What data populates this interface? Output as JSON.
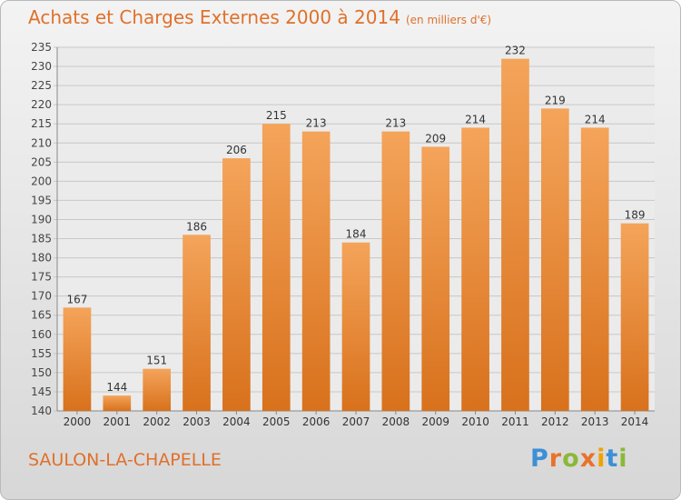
{
  "header": {
    "title": "Achats et Charges Externes 2000 à 2014",
    "subtitle": "(en milliers d'€)"
  },
  "footer": {
    "commune": "SAULON-LA-CHAPELLE"
  },
  "logo": {
    "text": "Proxiti",
    "colors": [
      "#3d8fd6",
      "#e8732a",
      "#8bb83a",
      "#e8732a",
      "#f0a300",
      "#3d8fd6",
      "#8bb83a"
    ]
  },
  "colors": {
    "bar_top": "#f4a45a",
    "bar_bottom": "#d8711c",
    "text": "#e0702a",
    "grid": "#c8c8c8"
  },
  "chart_data": {
    "type": "bar",
    "categories": [
      "2000",
      "2001",
      "2002",
      "2003",
      "2004",
      "2005",
      "2006",
      "2007",
      "2008",
      "2009",
      "2010",
      "2011",
      "2012",
      "2013",
      "2014"
    ],
    "values": [
      167,
      144,
      151,
      186,
      206,
      215,
      213,
      184,
      213,
      209,
      214,
      232,
      219,
      214,
      189
    ],
    "title": "Achats et Charges Externes 2000 à 2014",
    "ylim": [
      140,
      235
    ],
    "yticks": [
      140,
      145,
      150,
      155,
      160,
      165,
      170,
      175,
      180,
      185,
      190,
      195,
      200,
      205,
      210,
      215,
      220,
      225,
      230,
      235
    ],
    "grid": true,
    "data_labels": true
  }
}
